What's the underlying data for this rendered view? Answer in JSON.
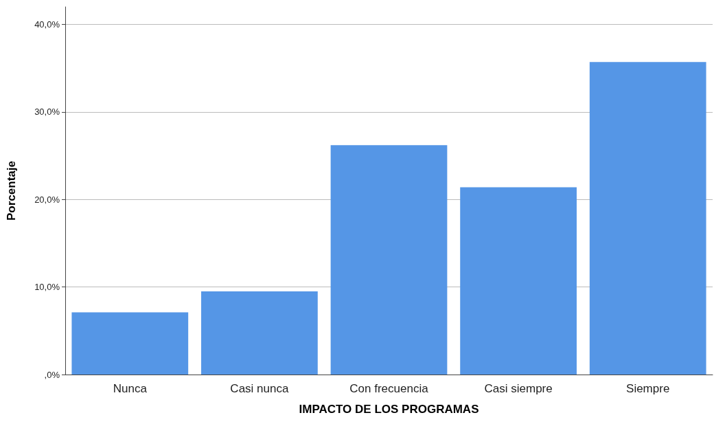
{
  "chart_data": {
    "type": "bar",
    "xlabel": "IMPACTO DE LOS PROGRAMAS",
    "ylabel": "Porcentaje",
    "categories": [
      "Nunca",
      "Casi nunca",
      "Con frecuencia",
      "Casi siempre",
      "Siempre"
    ],
    "values": [
      7.1,
      9.5,
      26.2,
      21.4,
      35.7
    ],
    "color": "#5596e6",
    "ylim": [
      0,
      42
    ],
    "yticks": [
      {
        "value": 0,
        "label": ",0%"
      },
      {
        "value": 10,
        "label": "10,0%"
      },
      {
        "value": 20,
        "label": "20,0%"
      },
      {
        "value": 30,
        "label": "30,0%"
      },
      {
        "value": 40,
        "label": "40,0%"
      }
    ],
    "grid": "y"
  }
}
